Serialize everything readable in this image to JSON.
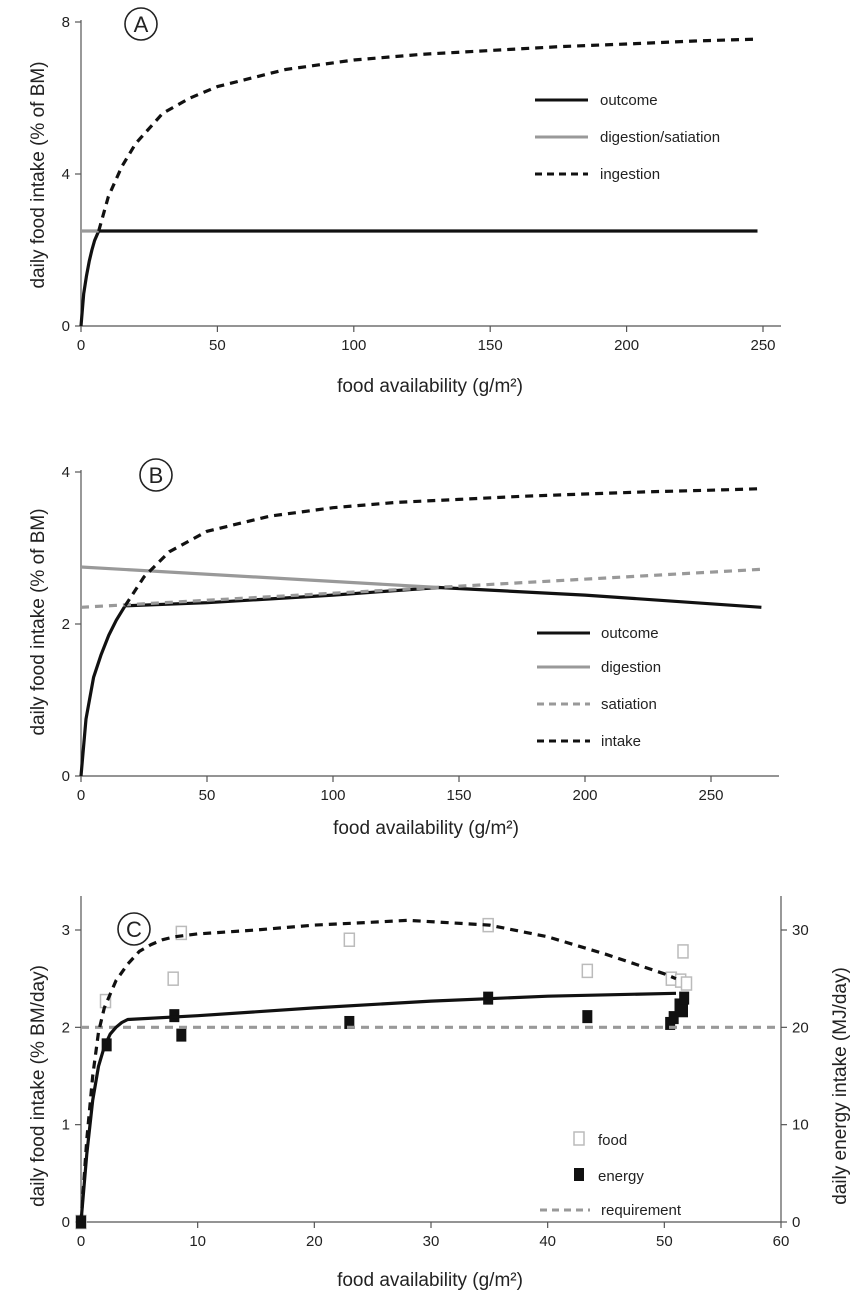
{
  "chart_data": [
    {
      "panel": "A",
      "type": "line",
      "xlabel": "food availability (g/m²)",
      "ylabel": "daily food intake (% of BM)",
      "xlim": [
        0,
        250
      ],
      "ylim": [
        0,
        8
      ],
      "xticks": [
        "0",
        "50",
        "100",
        "150",
        "200",
        "250"
      ],
      "yticks": [
        "0",
        "4",
        "8"
      ],
      "legend_position": "right",
      "series": [
        {
          "name": "outcome",
          "color": "#111111",
          "style": "solid",
          "x": [
            0,
            1,
            2,
            3,
            4,
            5,
            6.5,
            50,
            100,
            150,
            200,
            248
          ],
          "y": [
            0,
            0.85,
            1.32,
            1.7,
            2.0,
            2.25,
            2.5,
            2.5,
            2.5,
            2.5,
            2.5,
            2.5
          ]
        },
        {
          "name": "digestion/satiation",
          "color": "#999999",
          "style": "solid",
          "x": [
            0,
            6.5
          ],
          "y": [
            2.5,
            2.5
          ]
        },
        {
          "name": "ingestion",
          "color": "#111111",
          "style": "dashed",
          "x": [
            6.5,
            10,
            15,
            20,
            30,
            40,
            50,
            75,
            100,
            125,
            150,
            175,
            200,
            225,
            248
          ],
          "y": [
            2.5,
            3.4,
            4.2,
            4.8,
            5.6,
            6.0,
            6.3,
            6.75,
            7.0,
            7.15,
            7.25,
            7.35,
            7.42,
            7.5,
            7.55
          ]
        }
      ]
    },
    {
      "panel": "B",
      "type": "line",
      "xlabel": "food availability (g/m²)",
      "ylabel": "daily food intake (% of BM)",
      "xlim": [
        0,
        270
      ],
      "ylim": [
        0,
        4
      ],
      "xticks": [
        "0",
        "50",
        "100",
        "150",
        "200",
        "250"
      ],
      "yticks": [
        "0",
        "2",
        "4"
      ],
      "legend_position": "lower-right",
      "series": [
        {
          "name": "outcome",
          "color": "#111111",
          "style": "solid",
          "x": [
            0,
            2,
            5,
            8,
            11,
            14,
            17.5,
            50,
            100,
            142,
            200,
            270
          ],
          "y": [
            0,
            0.75,
            1.3,
            1.6,
            1.85,
            2.05,
            2.24,
            2.28,
            2.38,
            2.48,
            2.38,
            2.22
          ]
        },
        {
          "name": "digestion",
          "color": "#999999",
          "style": "solid",
          "x": [
            0,
            142
          ],
          "y": [
            2.75,
            2.48
          ]
        },
        {
          "name": "satiation",
          "color": "#999999",
          "style": "dashed",
          "x": [
            0,
            270
          ],
          "y": [
            2.22,
            2.72
          ]
        },
        {
          "name": "intake",
          "color": "#111111",
          "style": "dashed",
          "x": [
            17.5,
            25,
            35,
            50,
            75,
            100,
            125,
            150,
            175,
            200,
            225,
            250,
            270
          ],
          "y": [
            2.24,
            2.62,
            2.95,
            3.22,
            3.42,
            3.53,
            3.6,
            3.64,
            3.68,
            3.71,
            3.74,
            3.76,
            3.78
          ]
        }
      ]
    },
    {
      "panel": "C",
      "type": "scatter",
      "xlabel": "food availability (g/m²)",
      "ylabel": "daily food intake (% BM/day)",
      "ylabel_right": "daily energy intake (MJ/day)",
      "xlim": [
        0,
        60
      ],
      "ylim": [
        0,
        3.2
      ],
      "ylim_right": [
        0,
        32
      ],
      "xticks": [
        "0",
        "10",
        "20",
        "30",
        "40",
        "50",
        "60"
      ],
      "yticks": [
        "0",
        "1",
        "2",
        "3"
      ],
      "yticks_right": [
        "0",
        "10",
        "20",
        "30"
      ],
      "legend_position": "lower-right",
      "series": [
        {
          "name": "food",
          "color": "#bbbbbb",
          "marker": "open-square",
          "x": [
            0,
            2.1,
            7.9,
            8.6,
            23.0,
            34.9,
            43.4,
            50.6,
            51.4,
            51.6,
            51.9
          ],
          "y": [
            0,
            2.27,
            2.5,
            2.97,
            2.9,
            3.05,
            2.58,
            2.5,
            2.48,
            2.78,
            2.45
          ]
        },
        {
          "name": "energy",
          "color": "#111111",
          "marker": "filled-square",
          "x": [
            0,
            2.2,
            8.0,
            8.6,
            23.0,
            34.9,
            43.4,
            50.5,
            50.8,
            51.3,
            51.6,
            51.7
          ],
          "y": [
            0,
            18.2,
            21.2,
            19.2,
            20.5,
            23.0,
            21.1,
            20.4,
            21.0,
            22.3,
            21.7,
            23.0
          ]
        },
        {
          "name": "requirement",
          "color": "#999999",
          "style": "dashed",
          "x": [
            0,
            60
          ],
          "y": [
            2.0,
            2.0
          ]
        },
        {
          "name": "",
          "color": "#111111",
          "style": "solid",
          "x": [
            0,
            0.5,
            1,
            1.5,
            2,
            2.5,
            3,
            3.5,
            4,
            10,
            20,
            30,
            40,
            51
          ],
          "y": [
            0,
            0.7,
            1.25,
            1.6,
            1.8,
            1.93,
            2.0,
            2.05,
            2.08,
            2.12,
            2.2,
            2.27,
            2.32,
            2.35
          ]
        },
        {
          "name": "",
          "color": "#111111",
          "style": "dashed",
          "x": [
            0,
            0.5,
            1,
            1.5,
            2,
            3,
            4,
            5,
            6,
            7,
            8,
            10,
            15,
            20,
            25,
            28,
            35,
            40,
            45,
            50,
            51
          ],
          "y": [
            0,
            0.85,
            1.5,
            1.95,
            2.2,
            2.48,
            2.65,
            2.78,
            2.85,
            2.9,
            2.93,
            2.96,
            3.0,
            3.05,
            3.08,
            3.1,
            3.05,
            2.93,
            2.75,
            2.55,
            2.5
          ]
        }
      ]
    }
  ]
}
